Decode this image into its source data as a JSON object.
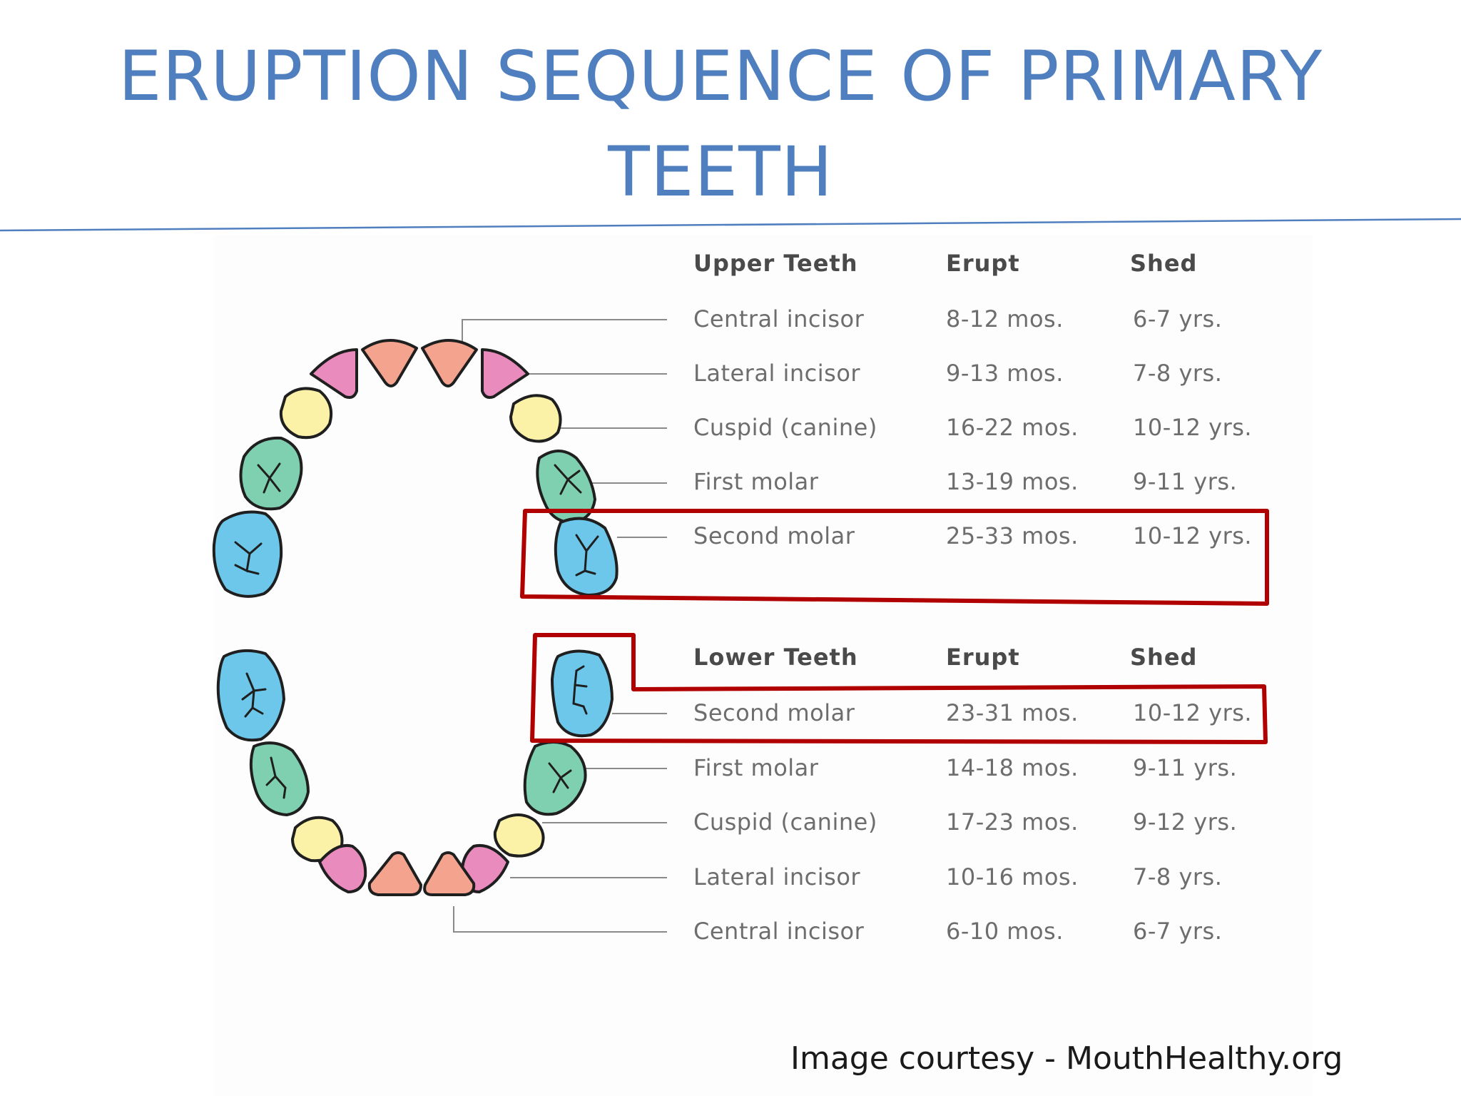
{
  "title": "ERUPTION SEQUENCE OF PRIMARY TEETH",
  "upper": {
    "headers": [
      "Upper Teeth",
      "Erupt",
      "Shed"
    ],
    "rows": [
      [
        "Central incisor",
        "8-12 mos.",
        "6-7 yrs."
      ],
      [
        "Lateral incisor",
        "9-13 mos.",
        "7-8 yrs."
      ],
      [
        "Cuspid (canine)",
        "16-22 mos.",
        "10-12 yrs."
      ],
      [
        "First  molar",
        "13-19 mos.",
        "9-11 yrs."
      ],
      [
        "Second molar",
        "25-33 mos.",
        "10-12 yrs."
      ]
    ]
  },
  "lower": {
    "headers": [
      "Lower Teeth",
      "Erupt",
      "Shed"
    ],
    "rows": [
      [
        "Second molar",
        "23-31 mos.",
        "10-12 yrs."
      ],
      [
        "First  molar",
        "14-18 mos.",
        "9-11 yrs."
      ],
      [
        "Cuspid (canine)",
        "17-23 mos.",
        "9-12 yrs."
      ],
      [
        "Lateral incisor",
        "10-16 mos.",
        "7-8 yrs."
      ],
      [
        "Central incisor",
        "6-10 mos.",
        "6-7 yrs."
      ]
    ]
  },
  "courtesy": "Image courtesy -  MouthHealthy.org",
  "colors": {
    "title": "#4f7fbf",
    "central_incisor": "#f4a48e",
    "lateral_incisor": "#e98bbd",
    "cuspid": "#fbf1a7",
    "first_molar": "#7fd0b0",
    "second_molar": "#6cc7ea",
    "highlight": "#b00000"
  }
}
